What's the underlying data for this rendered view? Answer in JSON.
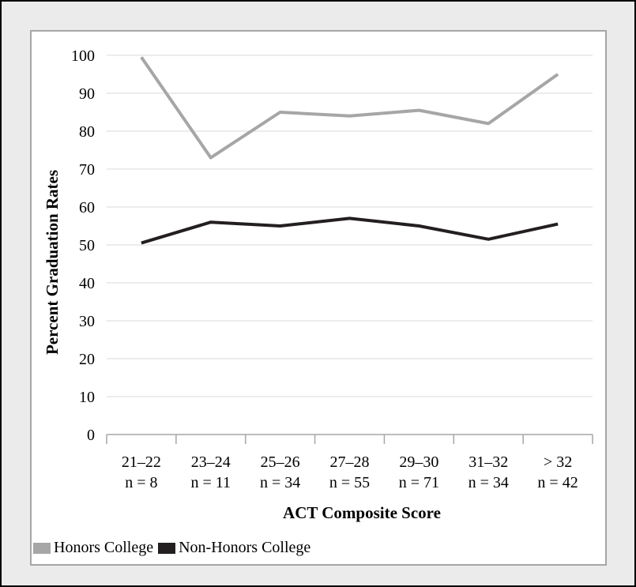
{
  "chart_data": {
    "type": "line",
    "title": "",
    "xlabel": "ACT Composite Score",
    "ylabel": "Percent Graduation Rates",
    "ylim": [
      0,
      100
    ],
    "yticks": [
      "0",
      "10",
      "20",
      "30",
      "40",
      "50",
      "60",
      "70",
      "80",
      "90",
      "100"
    ],
    "categories": [
      {
        "range": "21–22",
        "n": "n = 8"
      },
      {
        "range": "23–24",
        "n": "n = 11"
      },
      {
        "range": "25–26",
        "n": "n = 34"
      },
      {
        "range": "27–28",
        "n": "n = 55"
      },
      {
        "range": "29–30",
        "n": "n = 71"
      },
      {
        "range": "31–32",
        "n": "n = 34"
      },
      {
        "range": "> 32",
        "n": "n = 42"
      }
    ],
    "series": [
      {
        "name": "Honors College",
        "color": "#a6a6a6",
        "values": [
          99.5,
          73,
          85,
          84,
          85.5,
          82,
          95
        ]
      },
      {
        "name": "Non-Honors College",
        "color": "#231f20",
        "values": [
          50.5,
          56,
          55,
          57,
          55,
          51.5,
          55.5
        ]
      }
    ],
    "grid": true,
    "legend_position": "bottom-left"
  }
}
